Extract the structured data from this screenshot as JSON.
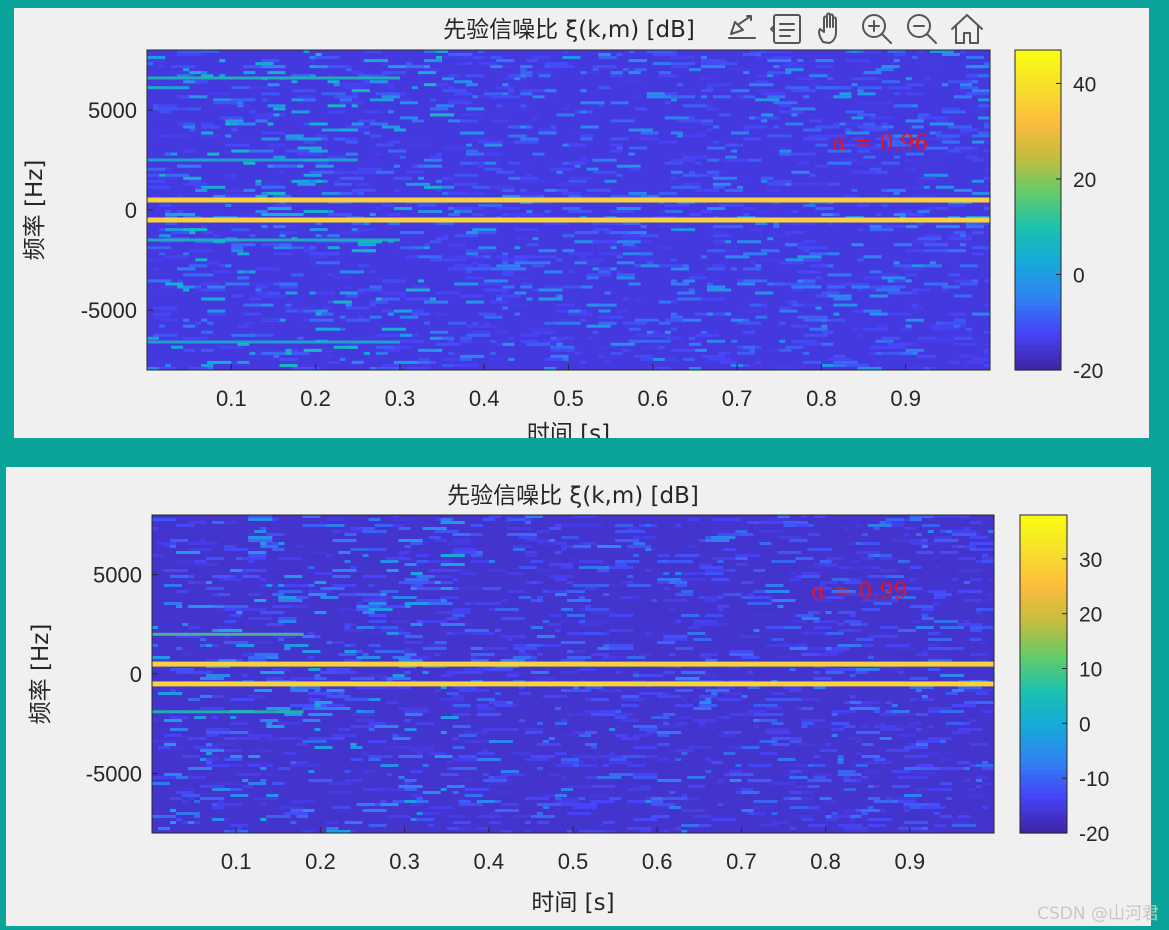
{
  "colors": {
    "background": "#0aa39a",
    "panel": "#f0f0f0",
    "annotation": "#e8141c",
    "ridge": "#f7d23a",
    "parula": [
      "#3e26a8",
      "#4743f8",
      "#2f82f2",
      "#17a9d9",
      "#1ac1b0",
      "#63cb6a",
      "#c2bd3d",
      "#fcbc3e",
      "#f7de2d",
      "#f9fb14"
    ]
  },
  "toolbar": {
    "icons": [
      "export-icon",
      "data-tips-icon",
      "pan-hand-icon",
      "zoom-in-icon",
      "zoom-out-icon",
      "home-icon"
    ]
  },
  "watermark": "CSDN @山河君",
  "chart_data": [
    {
      "type": "heatmap",
      "title": "先验信噪比 ξ(k,m) [dB]",
      "xlabel": "时间 [s]",
      "ylabel": "频率 [Hz]",
      "xlim": [
        0,
        1
      ],
      "ylim": [
        -8000,
        8000
      ],
      "xticks": [
        0.1,
        0.2,
        0.3,
        0.4,
        0.5,
        0.6,
        0.7,
        0.8,
        0.9
      ],
      "xtick_labels": [
        "0.1",
        "0.2",
        "0.3",
        "0.4",
        "0.5",
        "0.6",
        "0.7",
        "0.8",
        "0.9"
      ],
      "yticks": [
        5000,
        0,
        -5000
      ],
      "ytick_labels": [
        "5000",
        "0",
        "-5000"
      ],
      "colorbar": {
        "range": [
          -20,
          47
        ],
        "ticks": [
          40,
          20,
          0,
          -20
        ],
        "tick_labels": [
          "40",
          "20",
          "0",
          "-20"
        ]
      },
      "ridges_hz": [
        500,
        -500
      ],
      "annotation": "α = 0.96",
      "annotation_pos": [
        0.87,
        3000
      ],
      "background_db": -15,
      "noise_db_max": 5,
      "early_tones": [
        {
          "freq": 6600,
          "t_end": 0.3,
          "db": 10
        },
        {
          "freq": 2500,
          "t_end": 0.25,
          "db": 5
        },
        {
          "freq": -1500,
          "t_end": 0.3,
          "db": 8
        },
        {
          "freq": -6600,
          "t_end": 0.3,
          "db": 5
        }
      ],
      "seed": 11,
      "toolbar": true
    },
    {
      "type": "heatmap",
      "title": "先验信噪比 ξ(k,m) [dB]",
      "xlabel": "时间 [s]",
      "ylabel": "频率 [Hz]",
      "xlim": [
        0,
        1
      ],
      "ylim": [
        -8000,
        8000
      ],
      "xticks": [
        0.1,
        0.2,
        0.3,
        0.4,
        0.5,
        0.6,
        0.7,
        0.8,
        0.9
      ],
      "xtick_labels": [
        "0.1",
        "0.2",
        "0.3",
        "0.4",
        "0.5",
        "0.6",
        "0.7",
        "0.8",
        "0.9"
      ],
      "yticks": [
        5000,
        0,
        -5000
      ],
      "ytick_labels": [
        "5000",
        "0",
        "-5000"
      ],
      "colorbar": {
        "range": [
          -20,
          38
        ],
        "ticks": [
          30,
          20,
          10,
          0,
          -10,
          -20
        ],
        "tick_labels": [
          "30",
          "20",
          "10",
          "0",
          "-10",
          "-20"
        ]
      },
      "ridges_hz": [
        500,
        -500
      ],
      "annotation": "α = 0.99",
      "annotation_pos": [
        0.84,
        3800
      ],
      "background_db": -17,
      "noise_db_max": -3,
      "early_tones": [
        {
          "freq": 2000,
          "t_end": 0.18,
          "db": 10
        },
        {
          "freq": -1900,
          "t_end": 0.18,
          "db": 6
        }
      ],
      "seed": 29,
      "toolbar": false
    }
  ]
}
